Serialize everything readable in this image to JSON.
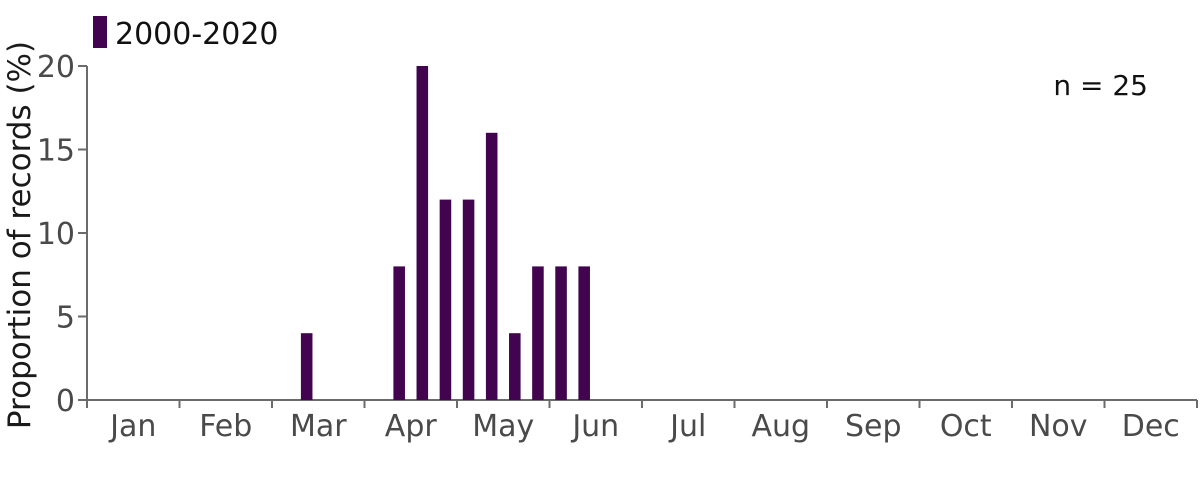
{
  "chart_data": {
    "type": "bar",
    "months": [
      "Jan",
      "Feb",
      "Mar",
      "Apr",
      "May",
      "Jun",
      "Jul",
      "Aug",
      "Sep",
      "Oct",
      "Nov",
      "Dec"
    ],
    "series": [
      {
        "name": "2000-2020",
        "color": "#42044f",
        "values": [
          0,
          0,
          0,
          0,
          0,
          0,
          0,
          0,
          0,
          4,
          0,
          0,
          0,
          8,
          20,
          12,
          12,
          16,
          4,
          8,
          8,
          8,
          0,
          0,
          0,
          0,
          0,
          0,
          0,
          0,
          0,
          0,
          0,
          0,
          0,
          0,
          0,
          0,
          0,
          0,
          0,
          0,
          0,
          0,
          0,
          0,
          0,
          0
        ]
      }
    ],
    "bins_per_month": 4,
    "ylabel": "Proportion of records (%)",
    "xlabel": "",
    "ylim": [
      0,
      20
    ],
    "yticks": [
      0,
      5,
      10,
      15,
      20
    ],
    "annotation": "n = 25",
    "legend_position": "top-left",
    "grid": false
  }
}
